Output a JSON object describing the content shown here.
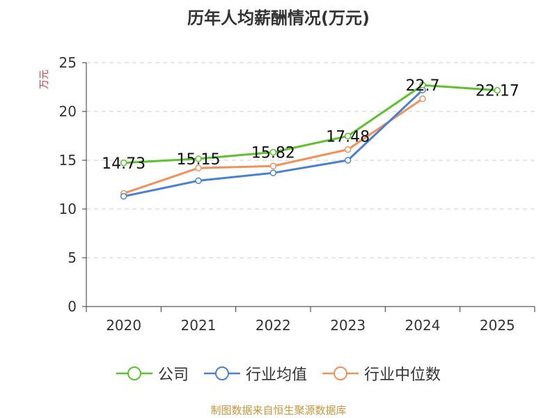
{
  "chart_data": {
    "type": "line",
    "title": "历年人均薪酬情况(万元)",
    "ylabel": "万元",
    "xlabel": "",
    "categories": [
      "2020",
      "2021",
      "2022",
      "2023",
      "2024",
      "2025"
    ],
    "ylim": [
      0,
      25
    ],
    "yticks": [
      0,
      5,
      10,
      15,
      20,
      25
    ],
    "grid": true,
    "legend_position": "bottom",
    "series": [
      {
        "name": "公司",
        "color": "#5cc12b",
        "values": [
          14.73,
          15.15,
          15.82,
          17.48,
          22.7,
          22.17
        ],
        "labels": [
          "14.73",
          "15.15",
          "15.82",
          "17.48",
          "22.7",
          "22.17"
        ]
      },
      {
        "name": "行业均值",
        "color": "#4a7fd6",
        "values": [
          11.3,
          12.9,
          13.7,
          15.0,
          22.2,
          null
        ]
      },
      {
        "name": "行业中位数",
        "color": "#f0915a",
        "values": [
          11.6,
          14.2,
          14.4,
          16.1,
          21.3,
          null
        ]
      }
    ]
  },
  "source": "制图数据来自恒生聚源数据库"
}
